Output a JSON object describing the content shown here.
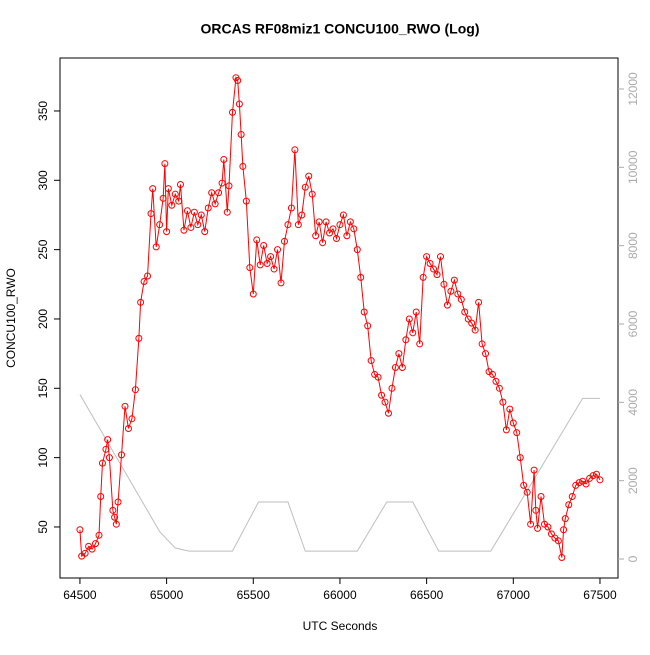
{
  "chart_data": {
    "type": "line",
    "title": "ORCAS RF08miz1 CONCU100_RWO (Log)",
    "x_label": "UTC Seconds",
    "y_label": "CONCU100_RWO",
    "xlim": [
      64385,
      67604
    ],
    "xticks": [
      64500,
      65000,
      65500,
      66000,
      66500,
      67000,
      67500
    ],
    "ylim": [
      13.2,
      388.2
    ],
    "yticks": [
      50,
      100,
      150,
      200,
      250,
      300,
      350
    ],
    "y2lim": [
      -485,
      12791
    ],
    "y2ticks": [
      0,
      2000,
      4000,
      6000,
      8000,
      10000,
      12000
    ],
    "series": [
      {
        "color": "#ff0000",
        "markers": true,
        "x": [
          64500,
          64510,
          64530,
          64550,
          64570,
          64590,
          64610,
          64620,
          64630,
          64650,
          64660,
          64670,
          64690,
          64700,
          64710,
          64720,
          64740,
          64760,
          64780,
          64800,
          64820,
          64840,
          64850,
          64870,
          64890,
          64910,
          64920,
          64940,
          64960,
          64980,
          64990,
          65000,
          65010,
          65030,
          65050,
          65070,
          65080,
          65100,
          65120,
          65140,
          65160,
          65180,
          65200,
          65220,
          65240,
          65260,
          65280,
          65300,
          65320,
          65330,
          65350,
          65360,
          65380,
          65400,
          65410,
          65420,
          65430,
          65440,
          65460,
          65480,
          65500,
          65520,
          65540,
          65560,
          65580,
          65600,
          65620,
          65640,
          65660,
          65680,
          65700,
          65720,
          65740,
          65760,
          65780,
          65800,
          65820,
          65840,
          65860,
          65880,
          65900,
          65920,
          65940,
          65960,
          65980,
          66000,
          66020,
          66040,
          66060,
          66080,
          66100,
          66120,
          66140,
          66160,
          66180,
          66200,
          66220,
          66240,
          66260,
          66280,
          66300,
          66320,
          66340,
          66360,
          66380,
          66400,
          66420,
          66440,
          66460,
          66480,
          66500,
          66520,
          66540,
          66560,
          66580,
          66600,
          66620,
          66640,
          66660,
          66680,
          66700,
          66720,
          66740,
          66760,
          66780,
          66800,
          66820,
          66840,
          66860,
          66880,
          66900,
          66920,
          66940,
          66960,
          66980,
          67000,
          67020,
          67040,
          67060,
          67080,
          67100,
          67120,
          67130,
          67140,
          67160,
          67180,
          67200,
          67220,
          67240,
          67260,
          67280,
          67290,
          67300,
          67320,
          67340,
          67360,
          67380,
          67400,
          67420,
          67440,
          67460,
          67480,
          67500
        ],
        "values": [
          48,
          29,
          31,
          36,
          34,
          38,
          44,
          72,
          96,
          106,
          113,
          100,
          62,
          57,
          52,
          68,
          102,
          137,
          121,
          128,
          149,
          186,
          212,
          227,
          231,
          276,
          294,
          252,
          268,
          287,
          312,
          263,
          294,
          282,
          290,
          285,
          297,
          264,
          278,
          266,
          277,
          268,
          275,
          263,
          280,
          291,
          283,
          291,
          298,
          315,
          277,
          296,
          349,
          374,
          372,
          355,
          333,
          310,
          285,
          237,
          218,
          257,
          239,
          253,
          240,
          245,
          236,
          250,
          226,
          256,
          268,
          280,
          322,
          268,
          275,
          295,
          303,
          290,
          260,
          270,
          255,
          270,
          262,
          265,
          258,
          268,
          275,
          260,
          270,
          265,
          250,
          230,
          205,
          195,
          170,
          160,
          158,
          145,
          140,
          132,
          150,
          165,
          175,
          165,
          185,
          200,
          190,
          205,
          182,
          230,
          245,
          240,
          236,
          232,
          245,
          225,
          210,
          220,
          228,
          218,
          214,
          205,
          200,
          197,
          192,
          212,
          182,
          175,
          162,
          160,
          155,
          150,
          140,
          120,
          135,
          125,
          118,
          100,
          80,
          75,
          52,
          91,
          62,
          49,
          72,
          52,
          50,
          45,
          42,
          40,
          28,
          48,
          56,
          66,
          72,
          80,
          82,
          83,
          81,
          85,
          87,
          88,
          84
        ]
      },
      {
        "color": "#bebebe",
        "axis": "y2",
        "x": [
          64500,
          64960,
          65050,
          65130,
          65380,
          65530,
          65700,
          65800,
          66100,
          66270,
          66420,
          66570,
          66870,
          67400,
          67500
        ],
        "values": [
          4200,
          700,
          280,
          200,
          200,
          1455,
          1455,
          200,
          200,
          1455,
          1455,
          200,
          200,
          4100,
          4100
        ]
      }
    ]
  }
}
